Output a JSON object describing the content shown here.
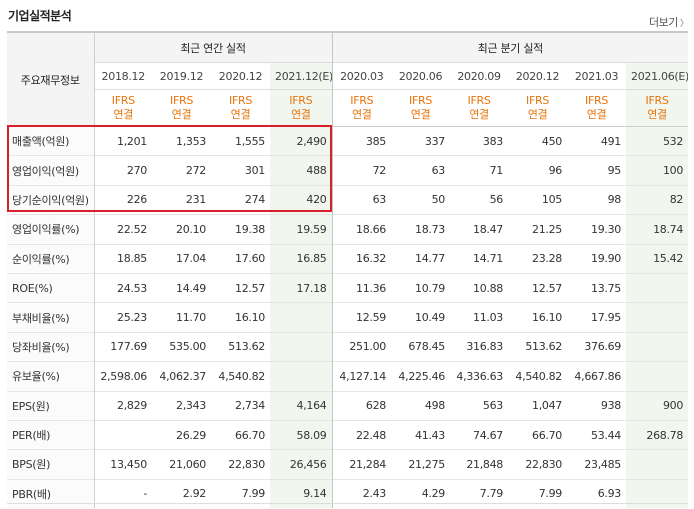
{
  "header": {
    "title": "기업실적분석",
    "more_label": "더보기",
    "more_arrow": "〉"
  },
  "table": {
    "row_header_title": "주요재무정보",
    "group_annual": "최근 연간 실적",
    "group_quarter": "최근 분기 실적",
    "periods": [
      "2018.12",
      "2019.12",
      "2020.12",
      "2021.12(E)",
      "2020.03",
      "2020.06",
      "2020.09",
      "2020.12",
      "2021.03",
      "2021.06(E)"
    ],
    "standard_line1": "IFRS",
    "standard_line2": "연결",
    "rows": [
      {
        "label": "매출액(억원)",
        "values": [
          "1,201",
          "1,353",
          "1,555",
          "2,490",
          "385",
          "337",
          "383",
          "450",
          "491",
          "532"
        ]
      },
      {
        "label": "영업이익(억원)",
        "values": [
          "270",
          "272",
          "301",
          "488",
          "72",
          "63",
          "71",
          "96",
          "95",
          "100"
        ]
      },
      {
        "label": "당기순이익(억원)",
        "values": [
          "226",
          "231",
          "274",
          "420",
          "63",
          "50",
          "56",
          "105",
          "98",
          "82"
        ]
      },
      {
        "label": "영업이익률(%)",
        "values": [
          "22.52",
          "20.10",
          "19.38",
          "19.59",
          "18.66",
          "18.73",
          "18.47",
          "21.25",
          "19.30",
          "18.74"
        ]
      },
      {
        "label": "순이익률(%)",
        "values": [
          "18.85",
          "17.04",
          "17.60",
          "16.85",
          "16.32",
          "14.77",
          "14.71",
          "23.28",
          "19.90",
          "15.42"
        ]
      },
      {
        "label": "ROE(%)",
        "values": [
          "24.53",
          "14.49",
          "12.57",
          "17.18",
          "11.36",
          "10.79",
          "10.88",
          "12.57",
          "13.75",
          ""
        ]
      },
      {
        "label": "부채비율(%)",
        "values": [
          "25.23",
          "11.70",
          "16.10",
          "",
          "12.59",
          "10.49",
          "11.03",
          "16.10",
          "17.95",
          ""
        ]
      },
      {
        "label": "당좌비율(%)",
        "values": [
          "177.69",
          "535.00",
          "513.62",
          "",
          "251.00",
          "678.45",
          "316.83",
          "513.62",
          "376.69",
          ""
        ]
      },
      {
        "label": "유보율(%)",
        "values": [
          "2,598.06",
          "4,062.37",
          "4,540.82",
          "",
          "4,127.14",
          "4,225.46",
          "4,336.63",
          "4,540.82",
          "4,667.86",
          ""
        ]
      },
      {
        "label": "EPS(원)",
        "values": [
          "2,829",
          "2,343",
          "2,734",
          "4,164",
          "628",
          "498",
          "563",
          "1,047",
          "938",
          "900"
        ]
      },
      {
        "label": "PER(배)",
        "values": [
          "",
          "26.29",
          "66.70",
          "58.09",
          "22.48",
          "41.43",
          "74.67",
          "66.70",
          "53.44",
          "268.78"
        ]
      },
      {
        "label": "BPS(원)",
        "values": [
          "13,450",
          "21,060",
          "22,830",
          "26,456",
          "21,284",
          "21,275",
          "21,848",
          "22,830",
          "23,485",
          ""
        ]
      },
      {
        "label": "PBR(배)",
        "values": [
          "-",
          "2.92",
          "7.99",
          "9.14",
          "2.43",
          "4.29",
          "7.79",
          "7.99",
          "6.93",
          ""
        ]
      }
    ]
  },
  "colors": {
    "highlight": "#d6212c",
    "ifrs_text": "#e8740c",
    "estimate_bg": "#f1f7ee"
  }
}
